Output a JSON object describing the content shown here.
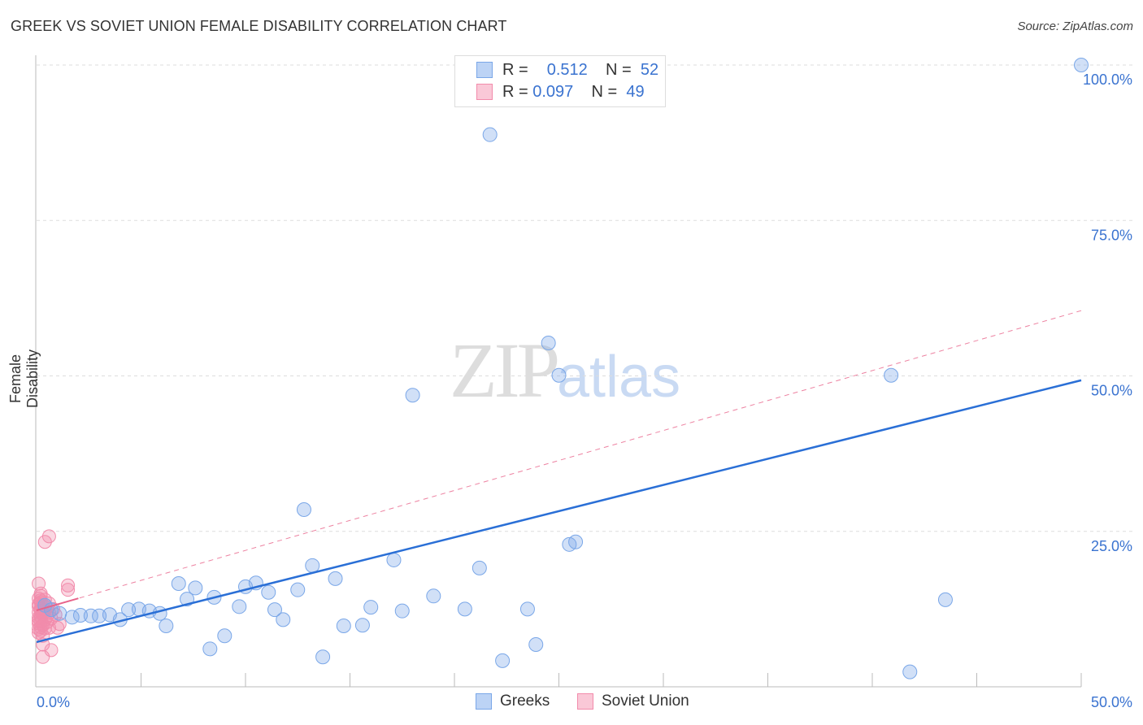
{
  "title": "GREEK VS SOVIET UNION FEMALE DISABILITY CORRELATION CHART",
  "source": "Source: ZipAtlas.com",
  "watermark": {
    "zip": "ZIP",
    "atlas": "atlas"
  },
  "legend": {
    "rows": [
      {
        "r_label": "R =",
        "r_value": "0.512",
        "n_label": "N =",
        "n_value": "52"
      },
      {
        "r_label": "R =",
        "r_value": "0.097",
        "n_label": "N =",
        "n_value": "49"
      }
    ]
  },
  "chart_data": {
    "type": "scatter",
    "title": "GREEK VS SOVIET UNION FEMALE DISABILITY CORRELATION CHART",
    "xlabel": "",
    "ylabel": "Female Disability",
    "xlim": [
      0,
      50
    ],
    "ylim": [
      0,
      100
    ],
    "x_tick_labels": [
      "0.0%",
      "50.0%"
    ],
    "y_tick_labels": [
      "100.0%",
      "75.0%",
      "50.0%",
      "25.0%"
    ],
    "y_ticks": [
      100,
      75,
      50,
      25
    ],
    "grid": true,
    "legend_placement": "bottom",
    "colors": {
      "greeks": "#7aa7e8",
      "greeks_line": "#2a6fd6",
      "soviet": "#f28bab",
      "soviet_line": "#e8638a"
    },
    "series": [
      {
        "name": "Greeks",
        "R": 0.512,
        "N": 52,
        "trend": [
          [
            0,
            7.2
          ],
          [
            50,
            49.3
          ]
        ],
        "points": [
          [
            50,
            100
          ],
          [
            21.7,
            88.8
          ],
          [
            24.5,
            55.3
          ],
          [
            25.0,
            50.1
          ],
          [
            18.0,
            46.9
          ],
          [
            40.9,
            50.1
          ],
          [
            12.8,
            28.5
          ],
          [
            25.5,
            22.9
          ],
          [
            25.8,
            23.3
          ],
          [
            13.2,
            19.5
          ],
          [
            17.1,
            20.4
          ],
          [
            21.2,
            19.1
          ],
          [
            14.3,
            17.4
          ],
          [
            6.8,
            16.6
          ],
          [
            7.6,
            15.9
          ],
          [
            10.0,
            16.1
          ],
          [
            10.5,
            16.7
          ],
          [
            11.1,
            15.2
          ],
          [
            12.5,
            15.6
          ],
          [
            8.5,
            14.4
          ],
          [
            7.2,
            14.1
          ],
          [
            19.0,
            14.6
          ],
          [
            43.5,
            14.0
          ],
          [
            9.7,
            12.9
          ],
          [
            16.0,
            12.8
          ],
          [
            11.4,
            12.4
          ],
          [
            17.5,
            12.2
          ],
          [
            20.5,
            12.5
          ],
          [
            23.5,
            12.5
          ],
          [
            4.4,
            12.4
          ],
          [
            4.9,
            12.5
          ],
          [
            5.4,
            12.2
          ],
          [
            5.9,
            11.8
          ],
          [
            3.5,
            11.6
          ],
          [
            3.0,
            11.4
          ],
          [
            2.6,
            11.4
          ],
          [
            2.1,
            11.5
          ],
          [
            1.7,
            11.2
          ],
          [
            1.1,
            11.8
          ],
          [
            0.7,
            12.4
          ],
          [
            0.4,
            13.1
          ],
          [
            4.0,
            10.8
          ],
          [
            11.8,
            10.8
          ],
          [
            6.2,
            9.8
          ],
          [
            14.7,
            9.8
          ],
          [
            15.6,
            9.9
          ],
          [
            9.0,
            8.2
          ],
          [
            8.3,
            6.1
          ],
          [
            23.9,
            6.8
          ],
          [
            13.7,
            4.8
          ],
          [
            22.3,
            4.2
          ],
          [
            41.8,
            2.4
          ]
        ]
      },
      {
        "name": "Soviet Union",
        "R": 0.097,
        "N": 49,
        "trend": [
          [
            0,
            12.3
          ],
          [
            50,
            60.5
          ]
        ],
        "points": [
          [
            0.6,
            24.2
          ],
          [
            0.4,
            23.3
          ],
          [
            0.1,
            16.6
          ],
          [
            1.5,
            16.3
          ],
          [
            1.5,
            15.6
          ],
          [
            0.2,
            15.0
          ],
          [
            0.1,
            14.2
          ],
          [
            0.2,
            13.6
          ],
          [
            0.3,
            13.2
          ],
          [
            0.1,
            12.9
          ],
          [
            0.2,
            12.6
          ],
          [
            0.4,
            12.3
          ],
          [
            0.1,
            12.0
          ],
          [
            0.3,
            11.7
          ],
          [
            0.2,
            11.4
          ],
          [
            0.1,
            11.1
          ],
          [
            0.4,
            10.8
          ],
          [
            0.2,
            10.5
          ],
          [
            0.1,
            10.2
          ],
          [
            0.3,
            9.9
          ],
          [
            0.2,
            9.6
          ],
          [
            0.5,
            12.8
          ],
          [
            0.6,
            11.9
          ],
          [
            0.7,
            11.0
          ],
          [
            0.2,
            13.9
          ],
          [
            0.1,
            13.3
          ],
          [
            0.3,
            12.1
          ],
          [
            0.2,
            11.2
          ],
          [
            0.1,
            10.6
          ],
          [
            0.3,
            10.0
          ],
          [
            0.4,
            9.4
          ],
          [
            0.2,
            9.0
          ],
          [
            0.1,
            8.7
          ],
          [
            0.5,
            10.4
          ],
          [
            0.6,
            13.4
          ],
          [
            0.8,
            12.5
          ],
          [
            0.9,
            11.6
          ],
          [
            1.1,
            10.1
          ],
          [
            1.0,
            9.5
          ],
          [
            0.6,
            9.5
          ],
          [
            0.3,
            8.2
          ],
          [
            0.3,
            6.8
          ],
          [
            0.7,
            5.9
          ],
          [
            0.3,
            4.8
          ],
          [
            0.2,
            14.6
          ],
          [
            0.4,
            14.0
          ],
          [
            0.1,
            9.3
          ],
          [
            0.5,
            11.3
          ],
          [
            0.2,
            12.2
          ]
        ]
      }
    ]
  },
  "bottom_legend": [
    {
      "label": "Greeks"
    },
    {
      "label": "Soviet Union"
    }
  ]
}
